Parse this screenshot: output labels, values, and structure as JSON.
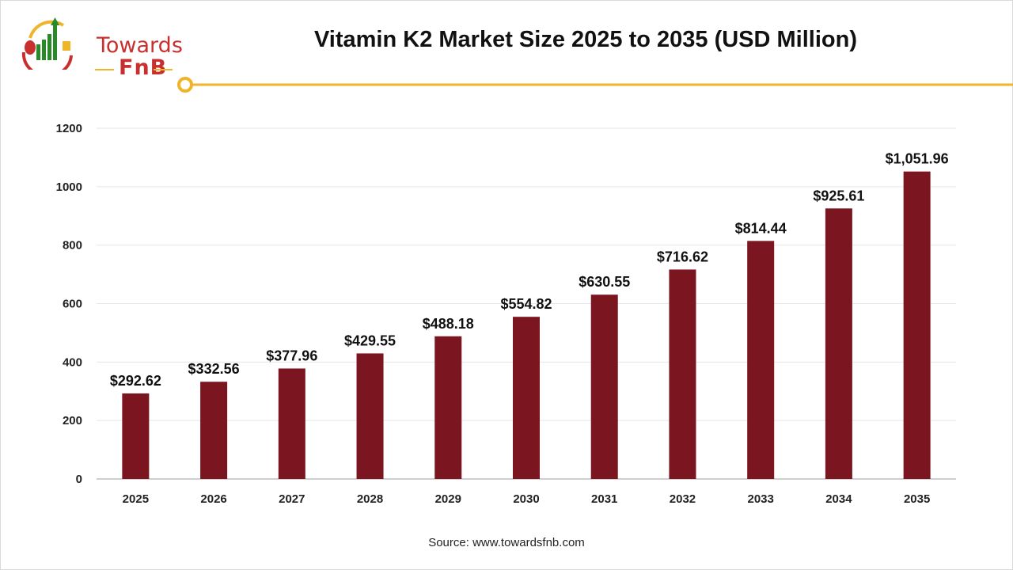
{
  "header": {
    "title": "Vitamin K2 Market Size 2025 to 2035 (USD Million)",
    "logo_text": "Towards FnB",
    "accent_color": "#f0b429"
  },
  "chart_data": {
    "type": "bar",
    "title": "Vitamin K2 Market Size 2025 to 2035 (USD Million)",
    "categories": [
      "2025",
      "2026",
      "2027",
      "2028",
      "2029",
      "2030",
      "2031",
      "2032",
      "2033",
      "2034",
      "2035"
    ],
    "values": [
      292.62,
      332.56,
      377.96,
      429.55,
      488.18,
      554.82,
      630.55,
      716.62,
      814.44,
      925.61,
      1051.96
    ],
    "data_labels": [
      "$292.62",
      "$332.56",
      "$377.96",
      "$429.55",
      "$488.18",
      "$554.82",
      "$630.55",
      "$716.62",
      "$814.44",
      "$925.61",
      "$1,051.96"
    ],
    "ylim": [
      0,
      1200
    ],
    "yticks": [
      0,
      200,
      400,
      600,
      800,
      1000,
      1200
    ],
    "grid": true,
    "bar_color": "#7b1520",
    "xlabel": "",
    "ylabel": ""
  },
  "footer": {
    "source": "Source: www.towardsfnb.com"
  }
}
